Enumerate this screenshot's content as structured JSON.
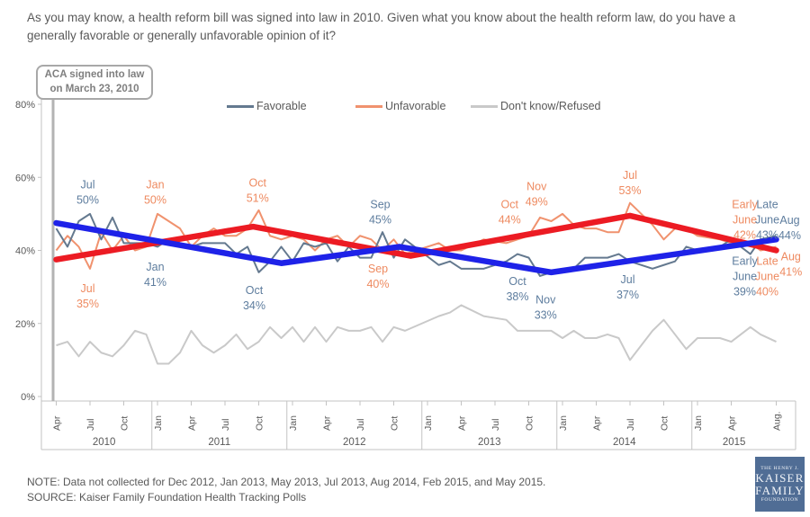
{
  "title": "As you may know, a health reform bill was signed into law in 2010. Given what you know about the health reform law, do you have a generally favorable or generally unfavorable opinion of it?",
  "aca_box": {
    "line1": "ACA signed into law",
    "line2": "on March 23, 2010"
  },
  "legend": [
    {
      "label": "Favorable",
      "color": "#64798f"
    },
    {
      "label": "Unfavorable",
      "color": "#f0926e"
    },
    {
      "label": "Don't know/Refused",
      "color": "#c9c9c9"
    }
  ],
  "note": "NOTE: Data not collected for Dec 2012, Jan 2013, May 2013, Jul 2013, Aug 2014, Feb 2015, and May 2015.",
  "source": "SOURCE: Kaiser Family Foundation Health Tracking Polls",
  "logo": {
    "lines": [
      "THE HENRY J.",
      "KAISER",
      "FAMILY",
      "FOUNDATION"
    ]
  },
  "chart_data": {
    "type": "line",
    "title": "Favorability of the health reform law, April 2010 - August 2015",
    "ylabel": "",
    "xlabel": "",
    "ylim": [
      0,
      80
    ],
    "grid": false,
    "legend_position": "top",
    "colors": {
      "fav_line": "#64798f",
      "unfav_line": "#f0926e",
      "dk_line": "#c9c9c9",
      "fav_label": "#5e7d9e",
      "unfav_label": "#ee8a60",
      "trend_fav": "#1e22e8",
      "trend_unfav": "#ec1b23",
      "axis": "#c3c3c3",
      "axis_text": "#595959",
      "aca_pointer": "#b3b3b3"
    },
    "x_points": [
      {
        "m": 0,
        "label": "Apr 2010"
      },
      {
        "m": 1,
        "label": "May 2010"
      },
      {
        "m": 2,
        "label": "Jun 2010"
      },
      {
        "m": 3,
        "label": "Jul 2010"
      },
      {
        "m": 4,
        "label": "Aug 2010"
      },
      {
        "m": 5,
        "label": "Sep 2010"
      },
      {
        "m": 6,
        "label": "Oct 2010"
      },
      {
        "m": 7,
        "label": "Nov 2010"
      },
      {
        "m": 8,
        "label": "Dec 2010"
      },
      {
        "m": 9,
        "label": "Jan 2011"
      },
      {
        "m": 10,
        "label": "Feb 2011"
      },
      {
        "m": 11,
        "label": "Mar 2011"
      },
      {
        "m": 12,
        "label": "Apr 2011"
      },
      {
        "m": 13,
        "label": "May 2011"
      },
      {
        "m": 14,
        "label": "Jun 2011"
      },
      {
        "m": 15,
        "label": "Jul 2011"
      },
      {
        "m": 16,
        "label": "Aug 2011"
      },
      {
        "m": 17,
        "label": "Sep 2011"
      },
      {
        "m": 18,
        "label": "Oct 2011"
      },
      {
        "m": 19,
        "label": "Nov 2011"
      },
      {
        "m": 20,
        "label": "Dec 2011"
      },
      {
        "m": 21,
        "label": "Jan 2012"
      },
      {
        "m": 22,
        "label": "Feb 2012"
      },
      {
        "m": 23,
        "label": "Mar 2012"
      },
      {
        "m": 24,
        "label": "Apr 2012"
      },
      {
        "m": 25,
        "label": "May 2012"
      },
      {
        "m": 26,
        "label": "Jun 2012"
      },
      {
        "m": 27,
        "label": "Jul 2012"
      },
      {
        "m": 28,
        "label": "Aug 2012"
      },
      {
        "m": 29,
        "label": "Sep 2012"
      },
      {
        "m": 30,
        "label": "Oct 2012"
      },
      {
        "m": 31,
        "label": "Nov 2012"
      },
      {
        "m": 34,
        "label": "Feb 2013"
      },
      {
        "m": 35,
        "label": "Mar 2013"
      },
      {
        "m": 36,
        "label": "Apr 2013"
      },
      {
        "m": 38,
        "label": "Jun 2013"
      },
      {
        "m": 40,
        "label": "Aug 2013"
      },
      {
        "m": 41,
        "label": "Sep 2013"
      },
      {
        "m": 42,
        "label": "Oct 2013"
      },
      {
        "m": 43,
        "label": "Nov 2013"
      },
      {
        "m": 44,
        "label": "Dec 2013"
      },
      {
        "m": 45,
        "label": "Jan 2014"
      },
      {
        "m": 46,
        "label": "Feb 2014"
      },
      {
        "m": 47,
        "label": "Mar 2014"
      },
      {
        "m": 48,
        "label": "Apr 2014"
      },
      {
        "m": 49,
        "label": "May 2014"
      },
      {
        "m": 50,
        "label": "Jun 2014"
      },
      {
        "m": 51,
        "label": "Jul 2014"
      },
      {
        "m": 53,
        "label": "Sep 2014"
      },
      {
        "m": 54,
        "label": "Oct 2014"
      },
      {
        "m": 55,
        "label": "Nov 2014"
      },
      {
        "m": 56,
        "label": "Dec 2014"
      },
      {
        "m": 57,
        "label": "Jan 2015"
      },
      {
        "m": 59,
        "label": "Mar 2015"
      },
      {
        "m": 60,
        "label": "Apr 2015"
      },
      {
        "m": 61.7,
        "label": "Early June 2015"
      },
      {
        "m": 62.6,
        "label": "Late June 2015"
      },
      {
        "m": 64,
        "label": "Aug 2015"
      }
    ],
    "series": [
      {
        "id": "favorable",
        "name": "Favorable",
        "color": "#64798f",
        "values": [
          46,
          41,
          48,
          50,
          43,
          49,
          42,
          42,
          42,
          41,
          43,
          42,
          41,
          42,
          42,
          42,
          39,
          41,
          34,
          37,
          41,
          37,
          42,
          41,
          42,
          37,
          41,
          38,
          38,
          45,
          38,
          43,
          36,
          37,
          35,
          35,
          37,
          39,
          38,
          33,
          34,
          34,
          35,
          38,
          38,
          38,
          39,
          37,
          35,
          36,
          37,
          41,
          40,
          41,
          43,
          39,
          43,
          44
        ]
      },
      {
        "id": "unfavorable",
        "name": "Unfavorable",
        "color": "#f0926e",
        "values": [
          40,
          44,
          41,
          35,
          45,
          40,
          44,
          40,
          41,
          50,
          48,
          46,
          41,
          44,
          46,
          44,
          44,
          46,
          51,
          44,
          43,
          44,
          43,
          40,
          43,
          44,
          41,
          44,
          43,
          40,
          43,
          39,
          42,
          40,
          40,
          43,
          42,
          43,
          44,
          49,
          48,
          50,
          47,
          46,
          46,
          45,
          45,
          53,
          47,
          43,
          46,
          46,
          44,
          43,
          42,
          42,
          40,
          41
        ]
      },
      {
        "id": "dont-know-refused",
        "name": "Don't know/Refused",
        "color": "#c9c9c9",
        "values": [
          14,
          15,
          11,
          15,
          12,
          11,
          14,
          18,
          17,
          9,
          9,
          12,
          18,
          14,
          12,
          14,
          17,
          13,
          15,
          19,
          16,
          19,
          15,
          19,
          15,
          19,
          18,
          18,
          19,
          15,
          19,
          18,
          22,
          23,
          25,
          22,
          21,
          18,
          18,
          18,
          18,
          16,
          18,
          16,
          16,
          17,
          16,
          10,
          18,
          21,
          17,
          13,
          16,
          16,
          15,
          19,
          17,
          15
        ]
      }
    ],
    "trend_lines": [
      {
        "id": "unfavorable-trend",
        "color": "#ec1b23",
        "points": [
          [
            0,
            37.5
          ],
          [
            17.5,
            46.5
          ],
          [
            31.5,
            38.5
          ],
          [
            51,
            49.5
          ],
          [
            64,
            40
          ]
        ]
      },
      {
        "id": "favorable-trend",
        "color": "#1e22e8",
        "points": [
          [
            0,
            47.5
          ],
          [
            20,
            36.5
          ],
          [
            30.5,
            41
          ],
          [
            44,
            34
          ],
          [
            64,
            43
          ]
        ]
      }
    ],
    "point_labels": [
      {
        "m": 2.8,
        "v": 58,
        "c": "fav",
        "lines": [
          "Jul",
          "50%"
        ]
      },
      {
        "m": 2.8,
        "v": 29.5,
        "c": "unfav",
        "lines": [
          "Jul",
          "35%"
        ]
      },
      {
        "m": 8.8,
        "v": 58,
        "c": "unfav",
        "lines": [
          "Jan",
          "50%"
        ]
      },
      {
        "m": 8.8,
        "v": 35.5,
        "c": "fav",
        "lines": [
          "Jan",
          "41%"
        ]
      },
      {
        "m": 17.9,
        "v": 58.5,
        "c": "unfav",
        "lines": [
          "Oct",
          "51%"
        ]
      },
      {
        "m": 17.6,
        "v": 29,
        "c": "fav",
        "lines": [
          "Oct",
          "34%"
        ]
      },
      {
        "m": 28.8,
        "v": 52.5,
        "c": "fav",
        "lines": [
          "Sep",
          "45%"
        ]
      },
      {
        "m": 28.6,
        "v": 35,
        "c": "unfav",
        "lines": [
          "Sep",
          "40%"
        ]
      },
      {
        "m": 40.3,
        "v": 52.5,
        "c": "unfav",
        "lines": [
          "Oct",
          "44%"
        ]
      },
      {
        "m": 42.7,
        "v": 57.5,
        "c": "unfav",
        "lines": [
          "Nov",
          "49%"
        ]
      },
      {
        "m": 41.0,
        "v": 31.5,
        "c": "fav",
        "lines": [
          "Oct",
          "38%"
        ]
      },
      {
        "m": 43.5,
        "v": 26.5,
        "c": "fav",
        "lines": [
          "Nov",
          "33%"
        ]
      },
      {
        "m": 51,
        "v": 60.5,
        "c": "unfav",
        "lines": [
          "Jul",
          "53%"
        ]
      },
      {
        "m": 50.8,
        "v": 32,
        "c": "fav",
        "lines": [
          "Jul",
          "37%"
        ]
      },
      {
        "m": 61.2,
        "v": 52.5,
        "c": "unfav",
        "lines": [
          "Early",
          "June",
          "42%"
        ]
      },
      {
        "m": 63.2,
        "v": 52.5,
        "c": "fav",
        "lines": [
          "Late",
          "June",
          "43%"
        ]
      },
      {
        "m": 65.2,
        "v": 48.3,
        "c": "fav",
        "lines": [
          "Aug",
          "44%"
        ]
      },
      {
        "m": 61.2,
        "v": 37,
        "c": "fav",
        "lines": [
          "Early",
          "June",
          "39%"
        ]
      },
      {
        "m": 63.2,
        "v": 37,
        "c": "unfav",
        "lines": [
          "Late",
          "June",
          "40%"
        ]
      },
      {
        "m": 65.3,
        "v": 38.3,
        "c": "unfav",
        "lines": [
          "Aug",
          "41%"
        ]
      }
    ],
    "y_axis": {
      "ticks": [
        {
          "v": 0,
          "label": "0%"
        },
        {
          "v": 20,
          "label": "20%"
        },
        {
          "v": 40,
          "label": "40%"
        },
        {
          "v": 60,
          "label": "60%"
        },
        {
          "v": 80,
          "label": "80%"
        }
      ]
    },
    "x_axis": {
      "month_ticks": [
        {
          "m": 0,
          "label": "Apr"
        },
        {
          "m": 3,
          "label": "Jul"
        },
        {
          "m": 6,
          "label": "Oct"
        },
        {
          "m": 9,
          "label": "Jan"
        },
        {
          "m": 12,
          "label": "Apr"
        },
        {
          "m": 15,
          "label": "Jul"
        },
        {
          "m": 18,
          "label": "Oct"
        },
        {
          "m": 21,
          "label": "Jan"
        },
        {
          "m": 24,
          "label": "Apr"
        },
        {
          "m": 27,
          "label": "Jul"
        },
        {
          "m": 30,
          "label": "Oct"
        },
        {
          "m": 33,
          "label": "Jan"
        },
        {
          "m": 36,
          "label": "Apr"
        },
        {
          "m": 39,
          "label": "Jul"
        },
        {
          "m": 42,
          "label": "Oct"
        },
        {
          "m": 45,
          "label": "Jan"
        },
        {
          "m": 48,
          "label": "Apr"
        },
        {
          "m": 51,
          "label": "Jul"
        },
        {
          "m": 54,
          "label": "Oct"
        },
        {
          "m": 57,
          "label": "Jan"
        },
        {
          "m": 60,
          "label": "Apr"
        },
        {
          "m": 64,
          "label": "Aug."
        }
      ],
      "year_labels": [
        {
          "m": 4.25,
          "label": "2010"
        },
        {
          "m": 14.5,
          "label": "2011"
        },
        {
          "m": 26.5,
          "label": "2012"
        },
        {
          "m": 38.5,
          "label": "2013"
        },
        {
          "m": 50.5,
          "label": "2014"
        },
        {
          "m": 60.25,
          "label": "2015"
        }
      ],
      "year_dividers_m": [
        8.5,
        20.5,
        32.5,
        44.5,
        56.5
      ]
    }
  }
}
